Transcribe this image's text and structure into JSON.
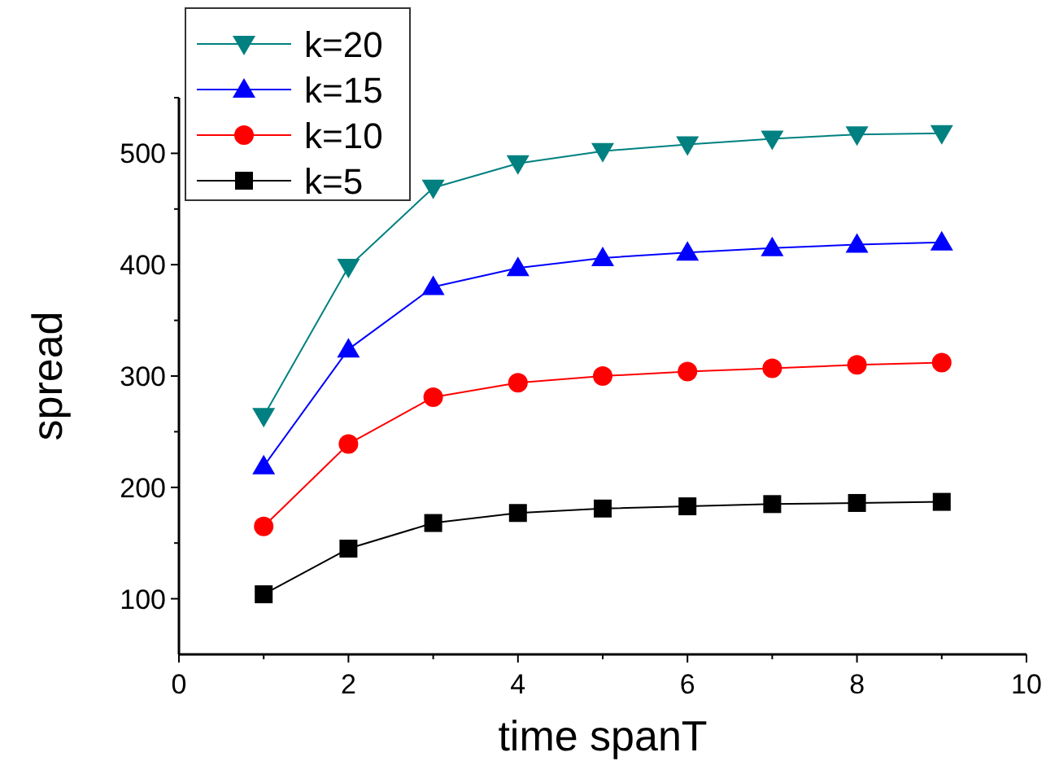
{
  "chart_data": {
    "type": "line",
    "xlabel": "time spanT",
    "ylabel": "spread",
    "x": [
      1,
      2,
      3,
      4,
      5,
      6,
      7,
      8,
      9
    ],
    "series": [
      {
        "name": "k=20",
        "color": "#008080",
        "marker": "triangle-down",
        "values": [
          264,
          398,
          469,
          491,
          502,
          508,
          513,
          517,
          518
        ]
      },
      {
        "name": "k=15",
        "color": "#0000ff",
        "marker": "triangle",
        "values": [
          219,
          324,
          380,
          397,
          406,
          411,
          415,
          418,
          420
        ]
      },
      {
        "name": "k=10",
        "color": "#ff0000",
        "marker": "circle",
        "values": [
          165,
          239,
          281,
          294,
          300,
          304,
          307,
          310,
          312
        ]
      },
      {
        "name": "k=5",
        "color": "#000000",
        "marker": "square",
        "values": [
          104,
          145,
          168,
          177,
          181,
          183,
          185,
          186,
          187
        ]
      }
    ],
    "xlim": [
      0,
      10
    ],
    "xticks": [
      0,
      {
        "value": 1,
        "label": null
      },
      2,
      {
        "value": 3,
        "label": null
      },
      4,
      {
        "value": 5,
        "label": null
      },
      6,
      {
        "value": 7,
        "label": null
      },
      8,
      {
        "value": 9,
        "label": null
      },
      10
    ],
    "ylim": [
      50,
      550
    ],
    "yticks": [
      100,
      {
        "value": 150,
        "label": null
      },
      200,
      {
        "value": 250,
        "label": null
      },
      300,
      {
        "value": 350,
        "label": null
      },
      400,
      {
        "value": 450,
        "label": null
      },
      500,
      {
        "value": 550,
        "label": null
      }
    ],
    "grid": false,
    "legend": "top left",
    "line_style": "solid"
  }
}
